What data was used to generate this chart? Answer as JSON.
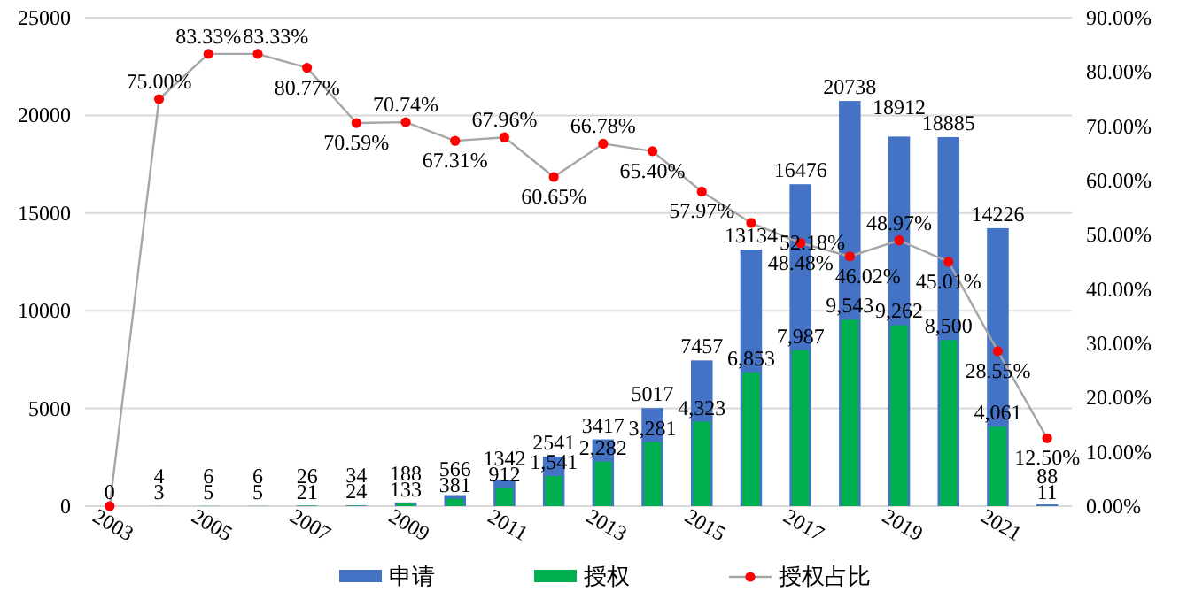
{
  "chart_data": {
    "type": "bar",
    "categories": [
      "2003",
      null,
      "2005",
      null,
      "2007",
      null,
      "2009",
      null,
      "2011",
      null,
      "2013",
      null,
      "2015",
      null,
      "2017",
      null,
      "2019",
      null,
      "2021",
      null
    ],
    "series": [
      {
        "name": "申请",
        "color": "#4472c4",
        "values": [
          0,
          4,
          6,
          6,
          26,
          34,
          188,
          566,
          1342,
          2541,
          3417,
          5017,
          7457,
          13134,
          16476,
          20738,
          18912,
          18885,
          14226,
          88
        ],
        "value_labels": [
          "0",
          "4",
          "6",
          "6",
          "26",
          "34",
          "188",
          "566",
          "1342",
          "2541",
          "3417",
          "5017",
          "7457",
          "13134",
          "16476",
          "20738",
          "18912",
          "18885",
          "14226",
          "88"
        ]
      },
      {
        "name": "授权",
        "color": "#00b050",
        "values": [
          0,
          3,
          5,
          5,
          21,
          24,
          133,
          381,
          912,
          1541,
          2282,
          3281,
          4323,
          6853,
          7987,
          9543,
          9262,
          8500,
          4061,
          11
        ],
        "value_labels": [
          null,
          "3",
          "5",
          "5",
          "21",
          "24",
          "133",
          "381",
          "912",
          "1,541",
          "2,282",
          "3,281",
          "4,323",
          "6,853",
          "7,987",
          "9,543",
          "9,262",
          "8,500",
          "4,061",
          "11"
        ]
      },
      {
        "name": "授权占比",
        "type": "line",
        "axis": "y2",
        "color": "#a6a6a6",
        "marker": "circle",
        "colors": [
          "#ff0000",
          "#ff0000",
          "#ff0000",
          "#ff0000",
          "#ff0000",
          "#ff0000",
          "#ff0000",
          "#ff0000",
          "#ff0000",
          "#ff0000",
          "#ff0000",
          "#ff0000",
          "#ff0000",
          "#ff0000",
          "#ff0000",
          "#ff0000",
          "#ff0000",
          "#ff0000",
          "#ff0000",
          "#ff0000"
        ],
        "values": [
          0,
          75.0,
          83.33,
          83.33,
          80.77,
          70.59,
          70.74,
          67.31,
          67.96,
          60.65,
          66.78,
          65.4,
          57.97,
          52.18,
          48.48,
          46.02,
          48.97,
          45.01,
          28.55,
          12.5
        ],
        "value_labels": [
          null,
          "75.00%",
          "83.33%",
          "83.33%",
          "80.77%",
          "70.59%",
          "70.74%",
          "67.31%",
          "67.96%",
          "60.65%",
          "66.78%",
          "65.40%",
          "57.97%",
          "52.18%",
          "48.48%",
          "46.02%",
          "48.97%",
          "45.01%",
          "28.55%",
          "12.50%"
        ]
      }
    ],
    "ylim": [
      0,
      25000
    ],
    "yticks": [
      0,
      5000,
      10000,
      15000,
      20000,
      25000
    ],
    "y2lim": [
      0,
      90
    ],
    "y2ticks": [
      {
        "value": 0,
        "label": "0.00%"
      },
      {
        "value": 10,
        "label": "10.00%"
      },
      {
        "value": 20,
        "label": "20.00%"
      },
      {
        "value": 30,
        "label": "30.00%"
      },
      {
        "value": 40,
        "label": "40.00%"
      },
      {
        "value": 50,
        "label": "50.00%"
      },
      {
        "value": 60,
        "label": "60.00%"
      },
      {
        "value": 70,
        "label": "70.00%"
      },
      {
        "value": 80,
        "label": "80.00%"
      },
      {
        "value": 90,
        "label": "90.00%"
      }
    ],
    "grid": "y",
    "legend": "bottom"
  }
}
